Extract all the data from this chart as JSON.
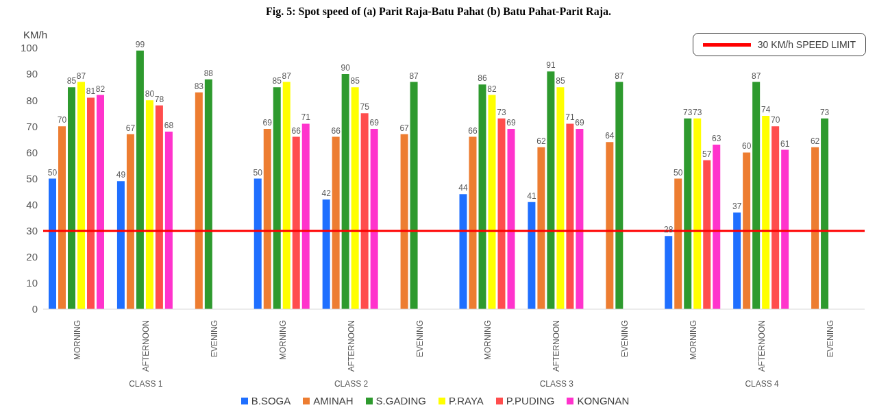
{
  "chart_data": {
    "type": "bar",
    "title": "Fig. 5: Spot speed of (a) Parit Raja-Batu Pahat (b) Batu Pahat-Parit Raja.",
    "ylabel": "KM/h",
    "categories": [
      "MORNING",
      "AFTERNOON",
      "EVENING",
      "MORNING",
      "AFTERNOON",
      "EVENING",
      "MORNING",
      "AFTERNOON",
      "EVENING",
      "MORNING",
      "AFTERNOON",
      "EVENING"
    ],
    "annotations": [
      "CLASS 1",
      "CLASS 2",
      "CLASS 3",
      "CLASS 4"
    ],
    "series": [
      {
        "name": "B.SOGA",
        "color": "#1f6fff",
        "values": [
          50,
          49,
          null,
          50,
          42,
          null,
          44,
          41,
          null,
          28,
          37,
          null
        ]
      },
      {
        "name": "AMINAH",
        "color": "#ed7d31",
        "values": [
          70,
          67,
          83,
          69,
          66,
          67,
          66,
          62,
          64,
          50,
          60,
          62
        ]
      },
      {
        "name": "S.GADING",
        "color": "#2e9a2e",
        "values": [
          85,
          99,
          88,
          85,
          90,
          87,
          86,
          91,
          87,
          73,
          87,
          73
        ]
      },
      {
        "name": "P.RAYA",
        "color": "#ffff00",
        "values": [
          87,
          80,
          null,
          87,
          85,
          null,
          82,
          85,
          null,
          73,
          74,
          null
        ]
      },
      {
        "name": "P.PUDING",
        "color": "#ff4d4d",
        "values": [
          81,
          78,
          null,
          66,
          75,
          null,
          73,
          71,
          null,
          57,
          70,
          null
        ]
      },
      {
        "name": "KONGNAN",
        "color": "#ff33cc",
        "values": [
          82,
          68,
          null,
          71,
          69,
          null,
          69,
          69,
          null,
          63,
          61,
          null
        ]
      }
    ],
    "ylim": [
      0,
      100
    ],
    "yticks": [
      0,
      10,
      20,
      30,
      40,
      50,
      60,
      70,
      80,
      90,
      100
    ],
    "ref_lines": [
      {
        "axis": "y",
        "value": 30,
        "label": "30 KM/h SPEED LIMIT",
        "color": "#ff0000"
      }
    ],
    "data_labels": true,
    "legend": "bottom"
  }
}
